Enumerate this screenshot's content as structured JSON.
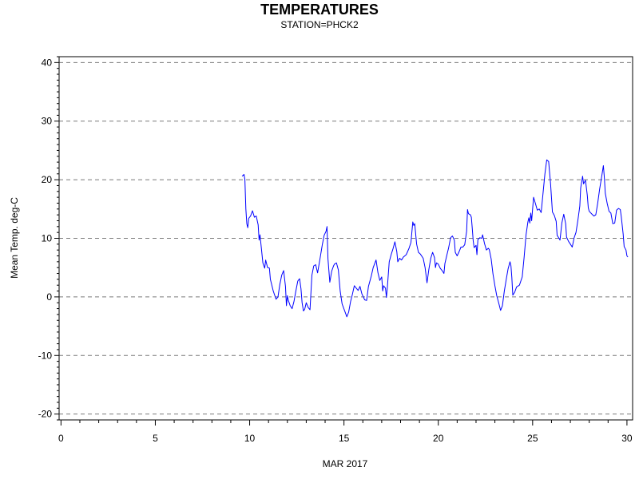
{
  "chart_data": {
    "type": "line",
    "title": "TEMPERATURES",
    "subtitle": "STATION=PHCK2",
    "xlabel": "MAR 2017",
    "ylabel": "Mean Temp. deg-C",
    "xlim": [
      -0.1,
      30.3
    ],
    "ylim": [
      -21,
      41
    ],
    "x_ticks": [
      0,
      5,
      10,
      15,
      20,
      25,
      30
    ],
    "y_ticks": [
      -20,
      -10,
      0,
      10,
      20,
      30,
      40
    ],
    "grid": "horizontal dashed",
    "series": [
      {
        "color": "#0000ff",
        "points": [
          [
            9.6,
            20.6
          ],
          [
            9.7,
            20.9
          ],
          [
            9.75,
            20.0
          ],
          [
            9.8,
            15.0
          ],
          [
            9.85,
            12.5
          ],
          [
            9.9,
            11.8
          ],
          [
            9.95,
            13.4
          ],
          [
            10.05,
            13.8
          ],
          [
            10.15,
            14.7
          ],
          [
            10.25,
            13.6
          ],
          [
            10.35,
            13.8
          ],
          [
            10.45,
            12.3
          ],
          [
            10.5,
            9.7
          ],
          [
            10.55,
            10.6
          ],
          [
            10.6,
            9.0
          ],
          [
            10.7,
            5.8
          ],
          [
            10.8,
            4.9
          ],
          [
            10.85,
            6.3
          ],
          [
            10.95,
            5.0
          ],
          [
            11.05,
            4.9
          ],
          [
            11.1,
            3.0
          ],
          [
            11.25,
            1.0
          ],
          [
            11.4,
            -0.4
          ],
          [
            11.5,
            0.0
          ],
          [
            11.6,
            2.1
          ],
          [
            11.7,
            3.7
          ],
          [
            11.8,
            4.5
          ],
          [
            11.9,
            1.8
          ],
          [
            11.95,
            -1.5
          ],
          [
            12.0,
            0.2
          ],
          [
            12.05,
            -0.6
          ],
          [
            12.15,
            -1.5
          ],
          [
            12.25,
            -2.0
          ],
          [
            12.35,
            -0.8
          ],
          [
            12.45,
            1.0
          ],
          [
            12.55,
            2.7
          ],
          [
            12.65,
            3.1
          ],
          [
            12.72,
            1.4
          ],
          [
            12.78,
            -1.0
          ],
          [
            12.85,
            -2.4
          ],
          [
            12.92,
            -2.1
          ],
          [
            13.0,
            -1.0
          ],
          [
            13.1,
            -1.8
          ],
          [
            13.2,
            -2.2
          ],
          [
            13.3,
            3.7
          ],
          [
            13.4,
            5.3
          ],
          [
            13.5,
            5.5
          ],
          [
            13.6,
            4.1
          ],
          [
            13.75,
            6.9
          ],
          [
            13.85,
            8.9
          ],
          [
            13.95,
            10.5
          ],
          [
            14.05,
            11.2
          ],
          [
            14.1,
            12.0
          ],
          [
            14.15,
            6.5
          ],
          [
            14.25,
            2.5
          ],
          [
            14.35,
            4.4
          ],
          [
            14.45,
            5.3
          ],
          [
            14.5,
            5.6
          ],
          [
            14.6,
            5.8
          ],
          [
            14.7,
            4.6
          ],
          [
            14.8,
            1.0
          ],
          [
            14.9,
            -1.2
          ],
          [
            15.05,
            -2.5
          ],
          [
            15.15,
            -3.4
          ],
          [
            15.25,
            -2.6
          ],
          [
            15.35,
            -0.8
          ],
          [
            15.45,
            0.5
          ],
          [
            15.55,
            1.9
          ],
          [
            15.65,
            1.5
          ],
          [
            15.75,
            1.1
          ],
          [
            15.85,
            1.8
          ],
          [
            15.95,
            0.5
          ],
          [
            16.1,
            -0.5
          ],
          [
            16.2,
            -0.6
          ],
          [
            16.3,
            1.8
          ],
          [
            16.45,
            3.6
          ],
          [
            16.55,
            5.0
          ],
          [
            16.7,
            6.3
          ],
          [
            16.8,
            4.1
          ],
          [
            16.9,
            2.8
          ],
          [
            17.0,
            3.4
          ],
          [
            17.05,
            1.0
          ],
          [
            17.1,
            1.9
          ],
          [
            17.2,
            1.5
          ],
          [
            17.25,
            -0.1
          ],
          [
            17.3,
            1.7
          ],
          [
            17.4,
            6.0
          ],
          [
            17.5,
            7.2
          ],
          [
            17.6,
            8.2
          ],
          [
            17.7,
            9.4
          ],
          [
            17.8,
            7.7
          ],
          [
            17.85,
            6.0
          ],
          [
            17.95,
            6.6
          ],
          [
            18.05,
            6.3
          ],
          [
            18.15,
            6.8
          ],
          [
            18.3,
            7.2
          ],
          [
            18.45,
            8.3
          ],
          [
            18.55,
            9.3
          ],
          [
            18.65,
            12.8
          ],
          [
            18.7,
            12.2
          ],
          [
            18.75,
            12.5
          ],
          [
            18.85,
            9.0
          ],
          [
            18.95,
            7.6
          ],
          [
            19.05,
            7.3
          ],
          [
            19.2,
            6.6
          ],
          [
            19.3,
            5.0
          ],
          [
            19.4,
            2.4
          ],
          [
            19.5,
            4.7
          ],
          [
            19.6,
            6.6
          ],
          [
            19.7,
            7.6
          ],
          [
            19.8,
            6.7
          ],
          [
            19.85,
            5.0
          ],
          [
            19.9,
            5.8
          ],
          [
            20.0,
            5.6
          ],
          [
            20.1,
            4.9
          ],
          [
            20.2,
            4.5
          ],
          [
            20.3,
            4.0
          ],
          [
            20.35,
            5.7
          ],
          [
            20.45,
            7.1
          ],
          [
            20.55,
            8.4
          ],
          [
            20.65,
            10.1
          ],
          [
            20.75,
            10.4
          ],
          [
            20.85,
            9.7
          ],
          [
            20.9,
            7.6
          ],
          [
            21.0,
            7.0
          ],
          [
            21.1,
            7.7
          ],
          [
            21.2,
            8.5
          ],
          [
            21.3,
            8.5
          ],
          [
            21.4,
            8.9
          ],
          [
            21.5,
            11.2
          ],
          [
            21.55,
            14.9
          ],
          [
            21.6,
            14.2
          ],
          [
            21.7,
            14.0
          ],
          [
            21.75,
            13.6
          ],
          [
            21.8,
            11.8
          ],
          [
            21.85,
            9.6
          ],
          [
            21.9,
            8.4
          ],
          [
            22.0,
            8.8
          ],
          [
            22.05,
            7.2
          ],
          [
            22.1,
            9.8
          ],
          [
            22.2,
            10.1
          ],
          [
            22.3,
            10.0
          ],
          [
            22.35,
            10.6
          ],
          [
            22.45,
            9.1
          ],
          [
            22.55,
            8.0
          ],
          [
            22.65,
            8.3
          ],
          [
            22.7,
            8.1
          ],
          [
            22.8,
            6.5
          ],
          [
            22.9,
            3.9
          ],
          [
            23.0,
            1.9
          ],
          [
            23.1,
            0.2
          ],
          [
            23.2,
            -1.0
          ],
          [
            23.3,
            -2.3
          ],
          [
            23.4,
            -1.5
          ],
          [
            23.5,
            1.0
          ],
          [
            23.6,
            3.0
          ],
          [
            23.7,
            4.8
          ],
          [
            23.8,
            6.0
          ],
          [
            23.85,
            5.3
          ],
          [
            23.9,
            3.3
          ],
          [
            23.95,
            0.3
          ],
          [
            24.05,
            0.8
          ],
          [
            24.15,
            1.7
          ],
          [
            24.3,
            2.0
          ],
          [
            24.45,
            3.4
          ],
          [
            24.55,
            6.8
          ],
          [
            24.65,
            10.6
          ],
          [
            24.75,
            12.8
          ],
          [
            24.8,
            13.5
          ],
          [
            24.85,
            12.6
          ],
          [
            24.9,
            14.3
          ],
          [
            24.95,
            13.0
          ],
          [
            25.05,
            17.0
          ],
          [
            25.15,
            15.9
          ],
          [
            25.25,
            14.8
          ],
          [
            25.35,
            15.0
          ],
          [
            25.45,
            14.4
          ],
          [
            25.55,
            17.6
          ],
          [
            25.65,
            21.0
          ],
          [
            25.75,
            23.4
          ],
          [
            25.85,
            23.1
          ],
          [
            25.95,
            19.3
          ],
          [
            26.05,
            14.5
          ],
          [
            26.15,
            13.9
          ],
          [
            26.25,
            12.9
          ],
          [
            26.3,
            10.5
          ],
          [
            26.4,
            10.0
          ],
          [
            26.45,
            9.7
          ],
          [
            26.55,
            12.6
          ],
          [
            26.65,
            14.1
          ],
          [
            26.75,
            12.5
          ],
          [
            26.8,
            10.2
          ],
          [
            26.9,
            9.5
          ],
          [
            27.0,
            9.0
          ],
          [
            27.1,
            8.5
          ],
          [
            27.2,
            10.1
          ],
          [
            27.3,
            11.0
          ],
          [
            27.4,
            13.1
          ],
          [
            27.5,
            15.5
          ],
          [
            27.55,
            18.6
          ],
          [
            27.65,
            20.6
          ],
          [
            27.7,
            19.3
          ],
          [
            27.8,
            19.9
          ],
          [
            27.9,
            17.3
          ],
          [
            27.95,
            15.2
          ],
          [
            28.0,
            14.6
          ],
          [
            28.15,
            14.1
          ],
          [
            28.25,
            13.8
          ],
          [
            28.35,
            14.0
          ],
          [
            28.45,
            16.0
          ],
          [
            28.55,
            18.4
          ],
          [
            28.65,
            20.3
          ],
          [
            28.75,
            22.4
          ],
          [
            28.8,
            20.4
          ],
          [
            28.85,
            17.7
          ],
          [
            28.95,
            16.0
          ],
          [
            29.05,
            14.6
          ],
          [
            29.15,
            14.3
          ],
          [
            29.25,
            12.5
          ],
          [
            29.35,
            12.6
          ],
          [
            29.45,
            14.8
          ],
          [
            29.55,
            15.1
          ],
          [
            29.65,
            14.9
          ],
          [
            29.7,
            13.7
          ],
          [
            29.8,
            10.7
          ],
          [
            29.85,
            8.6
          ],
          [
            29.95,
            8.0
          ],
          [
            30.0,
            7.0
          ],
          [
            30.05,
            6.8
          ]
        ]
      }
    ]
  }
}
